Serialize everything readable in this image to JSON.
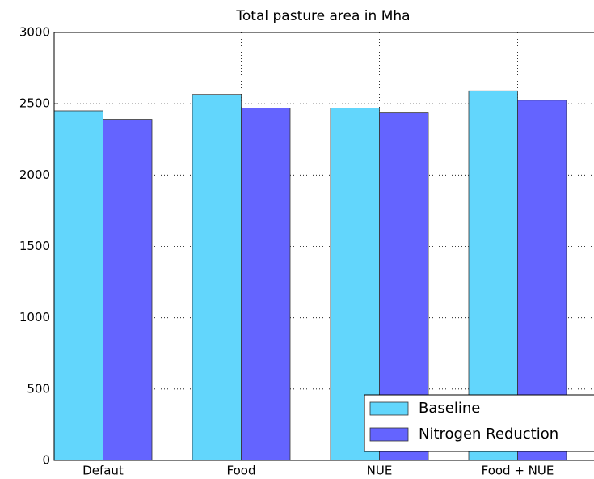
{
  "chart_data": {
    "type": "bar",
    "title": "Total pasture area in Mha",
    "categories": [
      "Defaut",
      "Food",
      "NUE",
      "Food + NUE"
    ],
    "series": [
      {
        "name": "Baseline",
        "color": "#62d6fc",
        "values": [
          2450,
          2565,
          2470,
          2590
        ]
      },
      {
        "name": "Nitrogen Reduction",
        "color": "#6464ff",
        "values": [
          2390,
          2470,
          2435,
          2525
        ]
      }
    ],
    "ylim": [
      0,
      3000
    ],
    "yticks": [
      0,
      500,
      1000,
      1500,
      2000,
      2500,
      3000
    ],
    "grid": true,
    "legend": "lower right"
  }
}
